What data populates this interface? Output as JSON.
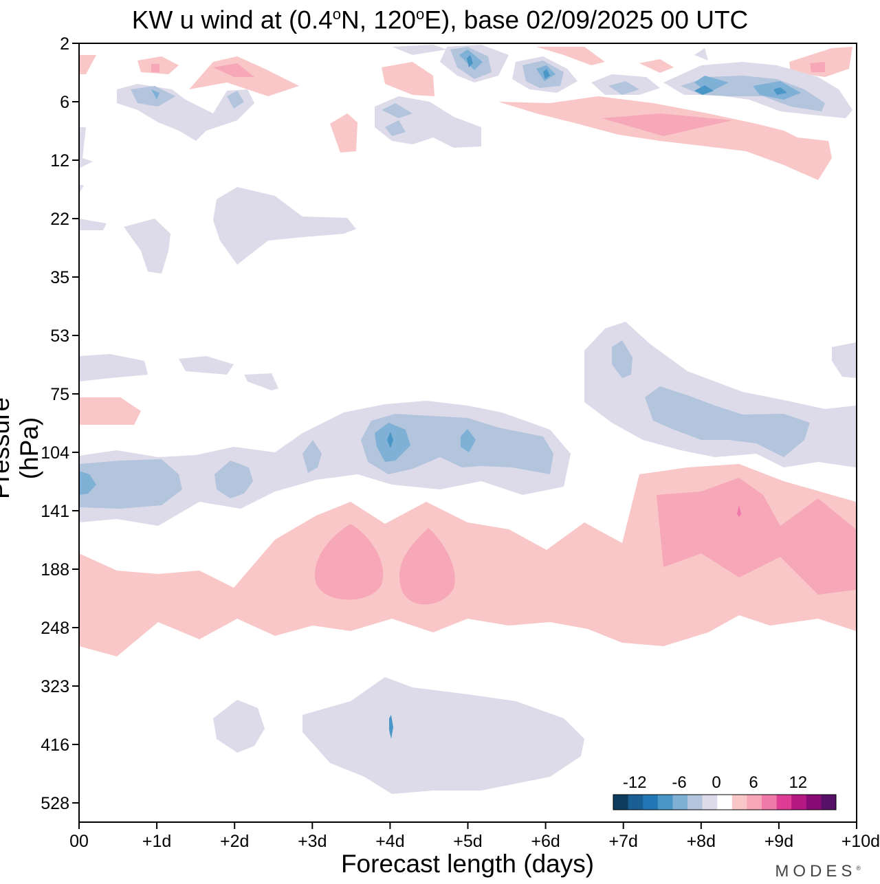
{
  "chart_data": {
    "type": "heatmap",
    "title_parts": {
      "prefix": "KW u wind at (0.4",
      "deg1": "o",
      "mid": "N, 120",
      "deg2": "o",
      "suffix": "E),  base 02/09/2025  00 UTC"
    },
    "xlabel": "Forecast length (days)",
    "ylabel": "Pressure (hPa)",
    "x_ticks": [
      "00",
      "+1d",
      "+2d",
      "+3d",
      "+4d",
      "+5d",
      "+6d",
      "+7d",
      "+8d",
      "+9d",
      "+10d"
    ],
    "xlim": [
      0,
      10
    ],
    "y_ticks": [
      "2",
      "6",
      "12",
      "22",
      "35",
      "53",
      "75",
      "104",
      "141",
      "188",
      "248",
      "323",
      "416",
      "528"
    ],
    "y_axis": "pressure levels (hPa), log-like spacing, top = 2 hPa",
    "colorbar": {
      "tick_labels": [
        "-12",
        "-6",
        "0",
        "6",
        "12"
      ],
      "colors": [
        "#0d3d5e",
        "#1a5f93",
        "#2178b4",
        "#4a97c7",
        "#7fb0d6",
        "#b3c4dd",
        "#dddbea",
        "#ffffff",
        "#f9c7c7",
        "#f6a8b8",
        "#ef79a8",
        "#dd3d94",
        "#b51882",
        "#880a74",
        "#561065"
      ]
    },
    "regions": [
      {
        "sign": "positive",
        "level": 1,
        "desc": "broad band 160-260 hPa across all days"
      },
      {
        "sign": "positive",
        "level": 2,
        "desc": "maxima near +3.5d, +4.5d, +8.5d, +9.5d at ~180 hPa"
      },
      {
        "sign": "negative",
        "level": 1,
        "desc": "band 80-140 hPa, and 350-500 hPa from +2d to +6.5d"
      },
      {
        "sign": "negative",
        "level": 2,
        "desc": "cores near 00-+1d and +4d-+5d at ~110 hPa"
      },
      {
        "sign": "mixed",
        "level": 1,
        "desc": "small cells 2-12 hPa"
      }
    ]
  },
  "branding": {
    "text": "MODES",
    "mark": "®"
  }
}
